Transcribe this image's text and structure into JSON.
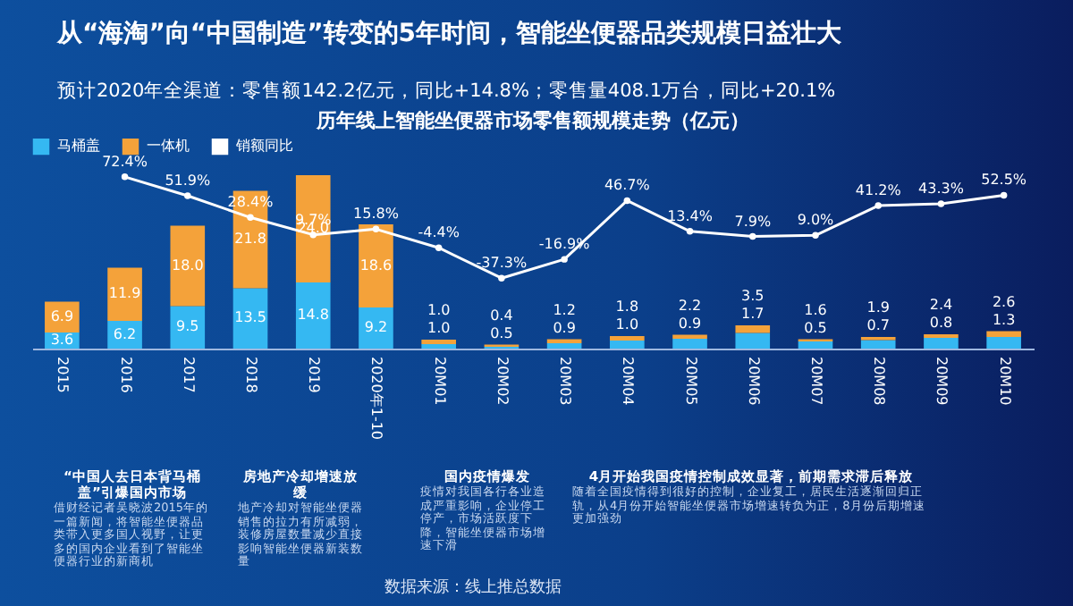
{
  "chart_data": {
    "type": "bar",
    "title": "历年线上智能坐便器市场零售额规模走势（亿元）",
    "annotations": [
      "从“海淘”向“中国制造”转变的5年时间，智能坐便器品类规模日益壮大",
      "预计2020年全渠道：零售额142.2亿元，同比+14.8%；零售量408.1万台，同比+20.1%",
      "“中国人去日本背马桶盖”引爆国内市场",
      "借财经记者吴晓波2015年的一篇新闻，将智能坐便器品类带入更多国人视野，让更多的国内企业看到了智能坐便器行业的新商机",
      "房地产冷却增速放缓",
      "地产冷却对智能坐便器销售的拉力有所减弱，装修房屋数量减少直接影响智能坐便器新装数量",
      "国内疫情爆发",
      "疫情对我国各行各业造成严重影响，企业停工停产，市场活跃度下降，智能坐便器市场增速下滑",
      "4月开始我国疫情控制成效显著，前期需求滞后释放",
      "随着全国疫情得到很好的控制，企业复工，居民生活逐渐回归正轨，从4月份开始智能坐便器市场增速转负为正，8月份后期增速更加强劲",
      "数据来源：线上推总数据"
    ],
    "categories": [
      "2015",
      "2016",
      "2017",
      "2018",
      "2019",
      "2020年1-10",
      "20M01",
      "20M02",
      "20M03",
      "20M04",
      "20M05",
      "20M06",
      "20M07",
      "20M08",
      "20M09",
      "20M10"
    ],
    "stacked": true,
    "legend": "top",
    "marker": "circle",
    "series": [
      {
        "name": "马桶盖",
        "color": "#35b8f2",
        "values": [
          3.6,
          6.2,
          9.5,
          13.5,
          14.8,
          9.2,
          1.0,
          0.4,
          1.2,
          1.8,
          2.2,
          3.5,
          1.6,
          1.9,
          2.4,
          2.6
        ],
        "value_labels": [
          "3.6",
          "6.2",
          "9.5",
          "13.5",
          "14.8",
          "9.2",
          "1.0",
          "0.4",
          "1.2",
          "1.8",
          "2.2",
          "3.5",
          "1.6",
          "1.9",
          "2.4",
          "2.6"
        ]
      },
      {
        "name": "一体机",
        "color": "#f4a23a",
        "values": [
          6.9,
          11.9,
          18.0,
          21.8,
          24.0,
          18.6,
          1.0,
          0.5,
          0.9,
          1.0,
          0.9,
          1.7,
          0.5,
          0.7,
          0.8,
          1.3
        ],
        "value_labels": [
          "6.9",
          "11.9",
          "18.0",
          "21.8",
          "24.0",
          "18.6",
          "1.0",
          "0.5",
          "0.9",
          "1.0",
          "0.9",
          "1.7",
          "0.5",
          "0.7",
          "0.8",
          "1.3"
        ]
      },
      {
        "name": "销额同比",
        "type": "line",
        "axis": "y2",
        "color": "#ffffff",
        "values": [
          null,
          72.4,
          51.9,
          28.4,
          9.7,
          15.8,
          -4.4,
          -37.3,
          -16.9,
          46.7,
          13.4,
          7.9,
          9.0,
          41.2,
          43.3,
          52.5
        ],
        "value_labels": [
          null,
          "72.4%",
          "51.9%",
          "28.4%",
          "9.7%",
          "15.8%",
          "-4.4%",
          "-37.3%",
          "-16.9%",
          "46.7%",
          "13.4%",
          "7.9%",
          "9.0%",
          "41.2%",
          "43.3%",
          "52.5%"
        ]
      }
    ]
  }
}
